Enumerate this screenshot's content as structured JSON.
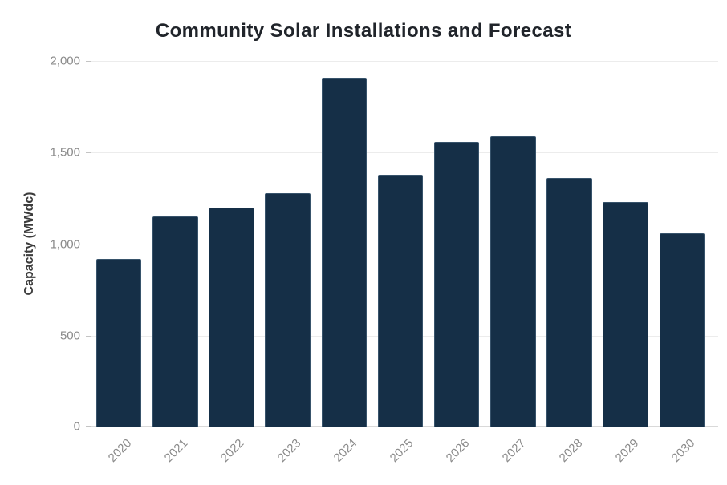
{
  "chart_data": {
    "type": "bar",
    "title": "Community Solar Installations and Forecast",
    "xlabel": "",
    "ylabel": "Capacity (MWdc)",
    "categories": [
      "2020",
      "2021",
      "2022",
      "2023",
      "2024",
      "2025",
      "2026",
      "2027",
      "2028",
      "2029",
      "2030"
    ],
    "values": [
      920,
      1150,
      1200,
      1280,
      1910,
      1380,
      1560,
      1590,
      1360,
      1230,
      1060
    ],
    "ylim": [
      0,
      2000
    ],
    "yticks": [
      0,
      500,
      1000,
      1500,
      2000
    ],
    "ytick_labels": [
      "0",
      "500",
      "1,000",
      "1,500",
      "2,000"
    ],
    "grid": true,
    "legend": false,
    "x_label_rotation_deg": -45,
    "colors": {
      "bar": "#152f47",
      "bar_edge": "#637f98",
      "gridline": "#ececec",
      "baseline": "#d9d9d9",
      "tick_text": "#8a8a8a",
      "title_text": "#20242a",
      "axis_label_text": "#3c3c3c",
      "background": "#ffffff"
    }
  }
}
